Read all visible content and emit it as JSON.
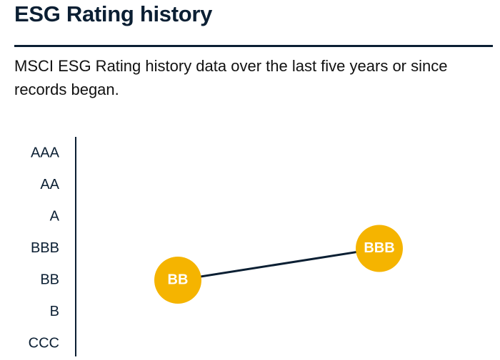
{
  "header": {
    "title": "ESG Rating history",
    "description": "MSCI ESG Rating history data over the last five years or since records began."
  },
  "chart_data": {
    "type": "line",
    "title": "",
    "xlabel": "",
    "ylabel": "",
    "y_categories": [
      "AAA",
      "AA",
      "A",
      "BBB",
      "BB",
      "B",
      "CCC"
    ],
    "series": [
      {
        "values": [
          "BB",
          "BBB"
        ],
        "data_labels": [
          "BB",
          "BBB"
        ]
      }
    ],
    "colors": {
      "marker": "#f5b400",
      "marker_text": "#ffffff",
      "line": "#0b1f33",
      "axis": "#0b1f33",
      "text": "#0b1f33"
    }
  }
}
